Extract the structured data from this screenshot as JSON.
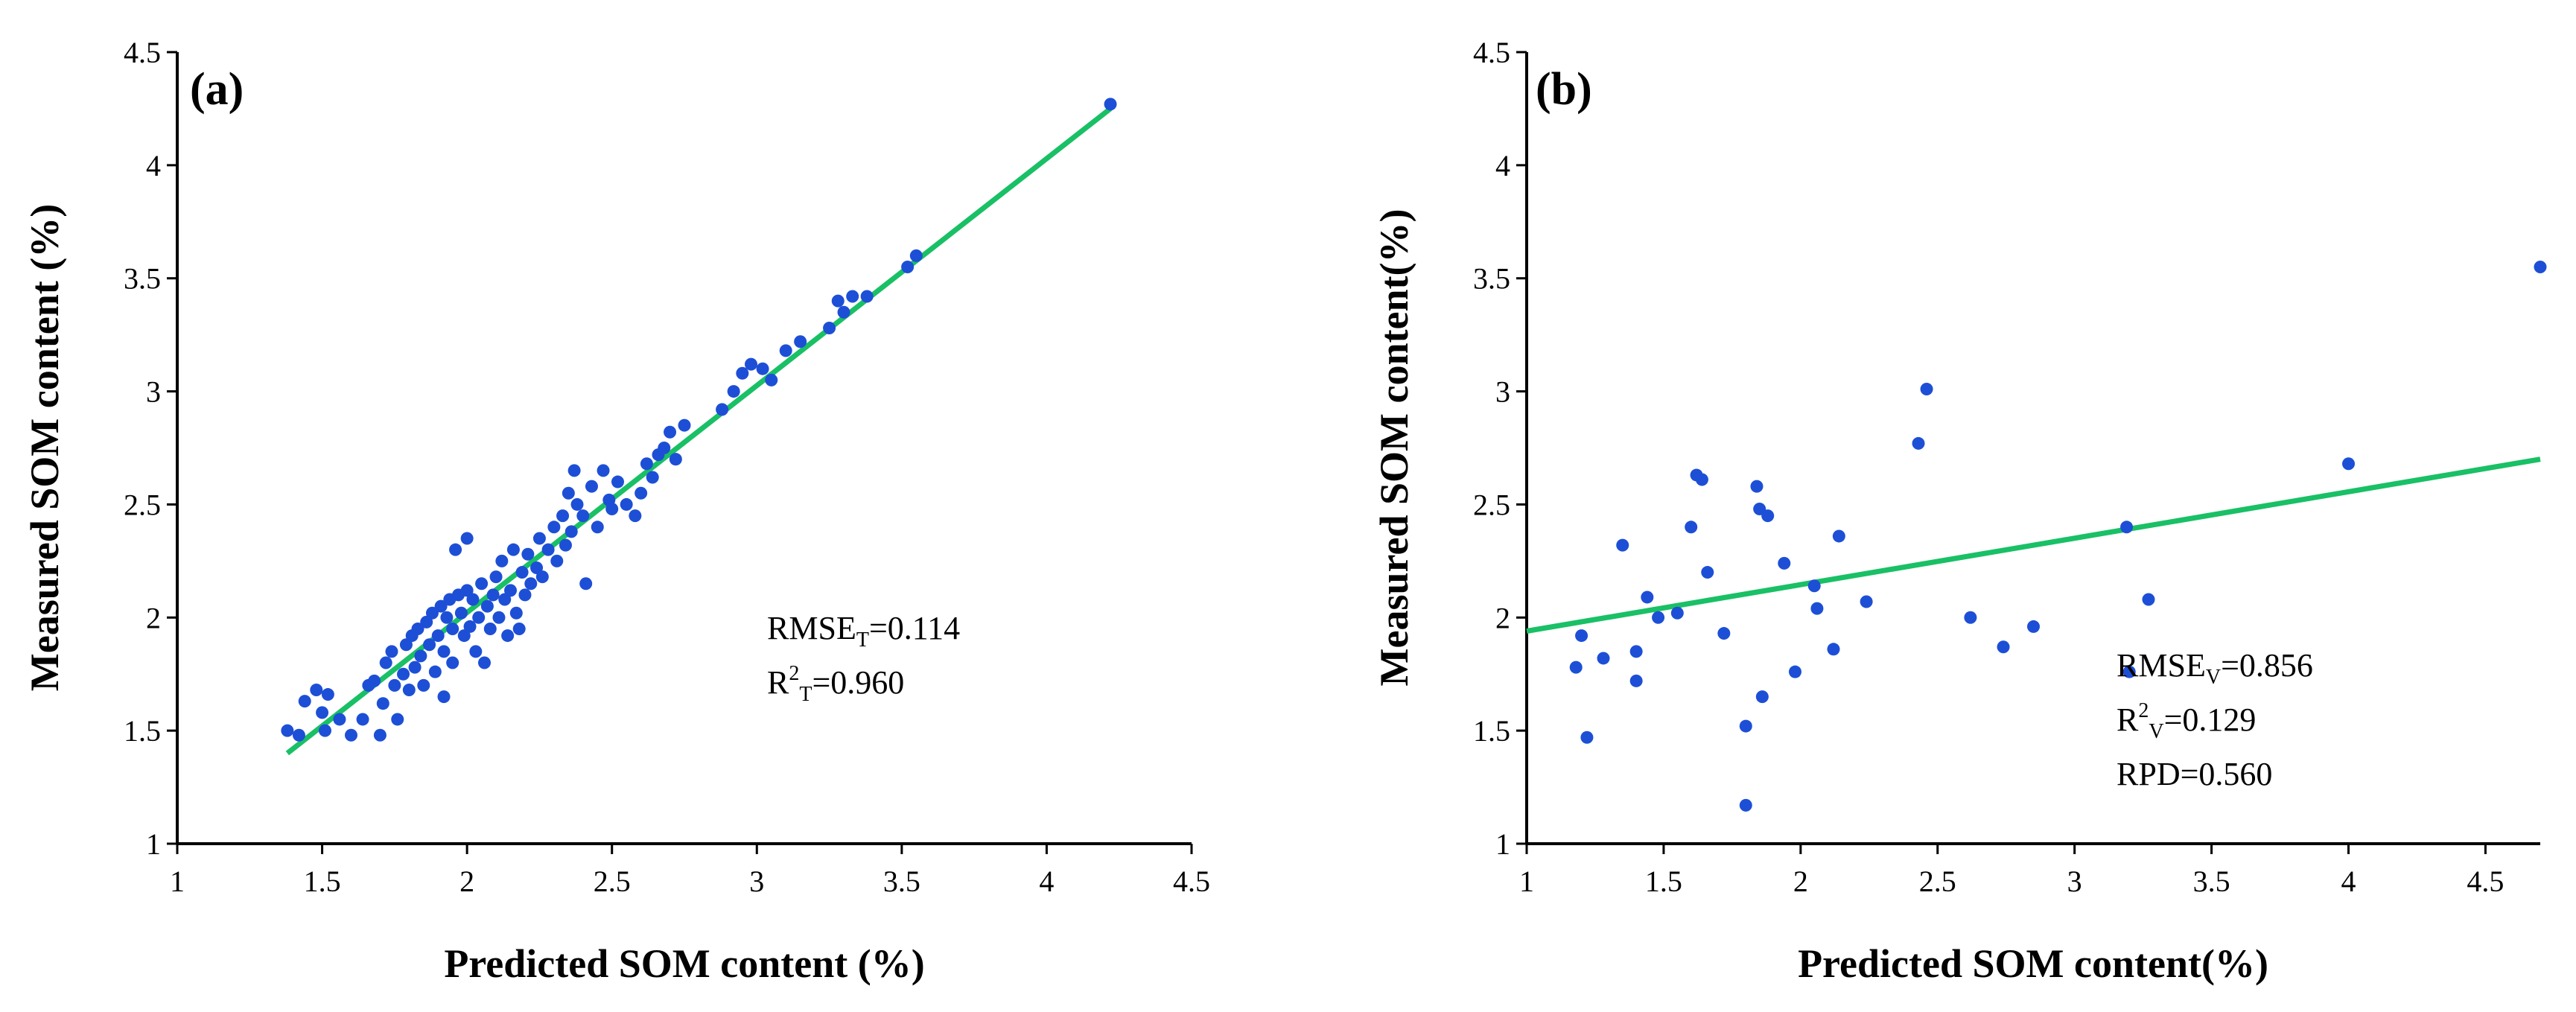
{
  "chart_data": [
    {
      "type": "scatter",
      "panel_label": "(a)",
      "xlabel": "Predicted SOM content (%)",
      "ylabel": "Measured SOM content (%)",
      "xlim": [
        1,
        4.5
      ],
      "ylim": [
        1,
        4.5
      ],
      "x_ticks": [
        "1",
        "1.5",
        "2",
        "2.5",
        "3",
        "3.5",
        "4",
        "4.5"
      ],
      "y_ticks": [
        "1",
        "1.5",
        "2",
        "2.5",
        "3",
        "3.5",
        "4",
        "4.5"
      ],
      "marker_color": "#1d4fd6",
      "fit_color": "#19c065",
      "fit_line": [
        [
          1.38,
          1.4
        ],
        [
          4.22,
          4.25
        ]
      ],
      "stats": [
        {
          "base": "RMSE",
          "sub": "T",
          "sup": "",
          "value": "=0.114"
        },
        {
          "base": "R",
          "sup": "2",
          "sub": "T",
          "value": "=0.960"
        }
      ],
      "points": [
        [
          1.38,
          1.5
        ],
        [
          1.42,
          1.48
        ],
        [
          1.44,
          1.63
        ],
        [
          1.48,
          1.68
        ],
        [
          1.5,
          1.58
        ],
        [
          1.52,
          1.66
        ],
        [
          1.51,
          1.5
        ],
        [
          1.56,
          1.55
        ],
        [
          1.6,
          1.48
        ],
        [
          1.64,
          1.55
        ],
        [
          1.66,
          1.7
        ],
        [
          1.68,
          1.72
        ],
        [
          1.7,
          1.48
        ],
        [
          1.71,
          1.62
        ],
        [
          1.72,
          1.8
        ],
        [
          1.74,
          1.85
        ],
        [
          1.75,
          1.7
        ],
        [
          1.76,
          1.55
        ],
        [
          1.78,
          1.75
        ],
        [
          1.79,
          1.88
        ],
        [
          1.8,
          1.68
        ],
        [
          1.81,
          1.92
        ],
        [
          1.82,
          1.78
        ],
        [
          1.83,
          1.95
        ],
        [
          1.84,
          1.83
        ],
        [
          1.85,
          1.7
        ],
        [
          1.86,
          1.98
        ],
        [
          1.87,
          1.88
        ],
        [
          1.88,
          2.02
        ],
        [
          1.89,
          1.76
        ],
        [
          1.9,
          1.92
        ],
        [
          1.91,
          2.05
        ],
        [
          1.92,
          1.85
        ],
        [
          1.92,
          1.65
        ],
        [
          1.93,
          2.0
        ],
        [
          1.94,
          2.08
        ],
        [
          1.95,
          1.95
        ],
        [
          1.95,
          1.8
        ],
        [
          1.96,
          2.3
        ],
        [
          1.97,
          2.1
        ],
        [
          1.98,
          2.02
        ],
        [
          1.99,
          1.92
        ],
        [
          2.0,
          2.35
        ],
        [
          2.0,
          2.12
        ],
        [
          2.01,
          1.96
        ],
        [
          2.02,
          2.08
        ],
        [
          2.03,
          1.85
        ],
        [
          2.04,
          2.0
        ],
        [
          2.05,
          2.15
        ],
        [
          2.06,
          1.8
        ],
        [
          2.07,
          2.05
        ],
        [
          2.08,
          1.95
        ],
        [
          2.09,
          2.1
        ],
        [
          2.1,
          2.18
        ],
        [
          2.11,
          2.0
        ],
        [
          2.12,
          2.25
        ],
        [
          2.13,
          2.08
        ],
        [
          2.14,
          1.92
        ],
        [
          2.15,
          2.12
        ],
        [
          2.16,
          2.3
        ],
        [
          2.17,
          2.02
        ],
        [
          2.18,
          1.95
        ],
        [
          2.19,
          2.2
        ],
        [
          2.2,
          2.1
        ],
        [
          2.21,
          2.28
        ],
        [
          2.22,
          2.15
        ],
        [
          2.24,
          2.22
        ],
        [
          2.25,
          2.35
        ],
        [
          2.26,
          2.18
        ],
        [
          2.28,
          2.3
        ],
        [
          2.3,
          2.4
        ],
        [
          2.31,
          2.25
        ],
        [
          2.33,
          2.45
        ],
        [
          2.34,
          2.32
        ],
        [
          2.35,
          2.55
        ],
        [
          2.36,
          2.38
        ],
        [
          2.37,
          2.65
        ],
        [
          2.38,
          2.5
        ],
        [
          2.4,
          2.45
        ],
        [
          2.41,
          2.15
        ],
        [
          2.43,
          2.58
        ],
        [
          2.45,
          2.4
        ],
        [
          2.47,
          2.65
        ],
        [
          2.49,
          2.52
        ],
        [
          2.5,
          2.48
        ],
        [
          2.52,
          2.6
        ],
        [
          2.55,
          2.5
        ],
        [
          2.58,
          2.45
        ],
        [
          2.6,
          2.55
        ],
        [
          2.62,
          2.68
        ],
        [
          2.64,
          2.62
        ],
        [
          2.66,
          2.72
        ],
        [
          2.68,
          2.75
        ],
        [
          2.7,
          2.82
        ],
        [
          2.72,
          2.7
        ],
        [
          2.75,
          2.85
        ],
        [
          2.88,
          2.92
        ],
        [
          2.92,
          3.0
        ],
        [
          2.95,
          3.08
        ],
        [
          2.98,
          3.12
        ],
        [
          3.02,
          3.1
        ],
        [
          3.05,
          3.05
        ],
        [
          3.1,
          3.18
        ],
        [
          3.15,
          3.22
        ],
        [
          3.25,
          3.28
        ],
        [
          3.28,
          3.4
        ],
        [
          3.3,
          3.35
        ],
        [
          3.33,
          3.42
        ],
        [
          3.38,
          3.42
        ],
        [
          3.52,
          3.55
        ],
        [
          3.55,
          3.6
        ],
        [
          4.22,
          4.27
        ]
      ]
    },
    {
      "type": "scatter",
      "panel_label": "(b)",
      "xlabel": "Predicted SOM content(%)",
      "ylabel": "Measured SOM content(%)",
      "xlim": [
        1,
        4.7
      ],
      "ylim": [
        1,
        4.5
      ],
      "x_ticks": [
        "1",
        "1.5",
        "2",
        "2.5",
        "3",
        "3.5",
        "4",
        "4.5"
      ],
      "y_ticks": [
        "1",
        "1.5",
        "2",
        "2.5",
        "3",
        "3.5",
        "4",
        "4.5"
      ],
      "marker_color": "#1d4fd6",
      "fit_color": "#19c065",
      "fit_line": [
        [
          1.0,
          1.94
        ],
        [
          4.7,
          2.7
        ]
      ],
      "stats": [
        {
          "base": "RMSE",
          "sub": "V",
          "sup": "",
          "value": "=0.856"
        },
        {
          "base": "R",
          "sup": "2",
          "sub": "V",
          "value": "=0.129"
        },
        {
          "base": "RPD",
          "sub": "",
          "sup": "",
          "value": "=0.560"
        }
      ],
      "points": [
        [
          1.18,
          1.78
        ],
        [
          1.2,
          1.92
        ],
        [
          1.22,
          1.47
        ],
        [
          1.28,
          1.82
        ],
        [
          1.35,
          2.32
        ],
        [
          1.4,
          1.72
        ],
        [
          1.4,
          1.85
        ],
        [
          1.44,
          2.09
        ],
        [
          1.48,
          2.0
        ],
        [
          1.55,
          2.02
        ],
        [
          1.6,
          2.4
        ],
        [
          1.62,
          2.63
        ],
        [
          1.64,
          2.61
        ],
        [
          1.66,
          2.2
        ],
        [
          1.72,
          1.93
        ],
        [
          1.8,
          1.52
        ],
        [
          1.8,
          1.17
        ],
        [
          1.84,
          2.58
        ],
        [
          1.85,
          2.48
        ],
        [
          1.86,
          1.65
        ],
        [
          1.88,
          2.45
        ],
        [
          1.94,
          2.24
        ],
        [
          1.98,
          1.76
        ],
        [
          2.05,
          2.14
        ],
        [
          2.06,
          2.04
        ],
        [
          2.12,
          1.86
        ],
        [
          2.14,
          2.36
        ],
        [
          2.24,
          2.07
        ],
        [
          2.43,
          2.77
        ],
        [
          2.46,
          3.01
        ],
        [
          2.62,
          2.0
        ],
        [
          2.74,
          1.87
        ],
        [
          2.85,
          1.96
        ],
        [
          3.19,
          2.4
        ],
        [
          3.2,
          1.76
        ],
        [
          3.27,
          2.08
        ],
        [
          4.0,
          2.68
        ],
        [
          4.7,
          3.55
        ]
      ]
    }
  ]
}
